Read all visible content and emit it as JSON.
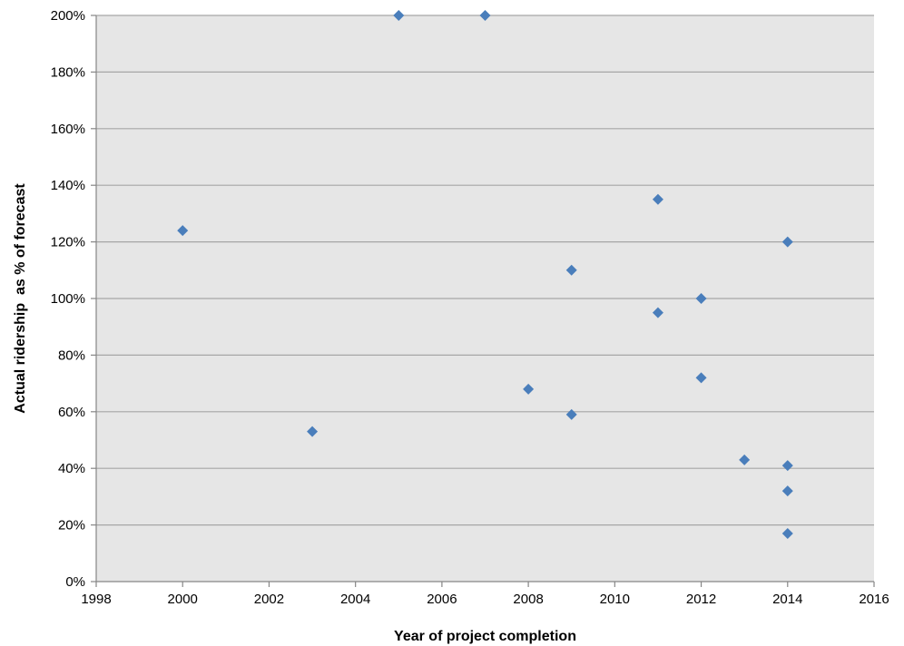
{
  "chart_data": {
    "type": "scatter",
    "title": "",
    "xlabel": "Year of project completion",
    "ylabel": "Actual ridership  as % of forecast",
    "xlim": [
      1998,
      2016
    ],
    "ylim": [
      0,
      200
    ],
    "x_ticks": [
      1998,
      2000,
      2002,
      2004,
      2006,
      2008,
      2010,
      2012,
      2014,
      2016
    ],
    "x_tick_labels": [
      "1998",
      "2000",
      "2002",
      "2004",
      "2006",
      "2008",
      "2010",
      "2012",
      "2014",
      "2016"
    ],
    "y_ticks": [
      0,
      20,
      40,
      60,
      80,
      100,
      120,
      140,
      160,
      180,
      200
    ],
    "y_tick_labels": [
      "0%",
      "20%",
      "40%",
      "60%",
      "80%",
      "100%",
      "120%",
      "140%",
      "160%",
      "180%",
      "200%"
    ],
    "grid": "horizontal",
    "legend": "none",
    "marker": "diamond",
    "colors": {
      "marker": "#4a7ebb",
      "plot_background": "#e6e6e6",
      "gridline": "#a6a6a6",
      "axis": "#868686"
    },
    "points": [
      {
        "x": 2000,
        "y": 124
      },
      {
        "x": 2003,
        "y": 53
      },
      {
        "x": 2005,
        "y": 200
      },
      {
        "x": 2007,
        "y": 200
      },
      {
        "x": 2008,
        "y": 68
      },
      {
        "x": 2009,
        "y": 110
      },
      {
        "x": 2009,
        "y": 59
      },
      {
        "x": 2011,
        "y": 135
      },
      {
        "x": 2011,
        "y": 95
      },
      {
        "x": 2012,
        "y": 100
      },
      {
        "x": 2012,
        "y": 72
      },
      {
        "x": 2013,
        "y": 43
      },
      {
        "x": 2014,
        "y": 120
      },
      {
        "x": 2014,
        "y": 41
      },
      {
        "x": 2014,
        "y": 32
      },
      {
        "x": 2014,
        "y": 17
      }
    ]
  }
}
